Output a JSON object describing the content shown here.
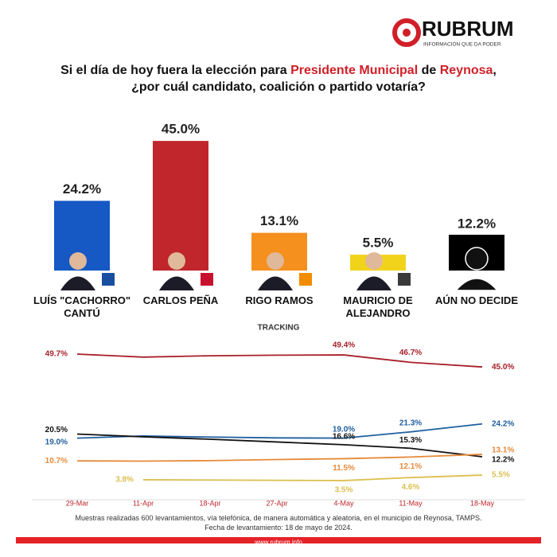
{
  "header": {
    "brand": "RUBRUM",
    "tagline": "INFORMACIÓN QUE DA PODER",
    "question": [
      "Si el día de hoy fuera la elección para ",
      "Presidente Municipal",
      " de ",
      "Reynosa",
      ", ¿por cuál candidato, coalición o partido votaría?"
    ]
  },
  "chart_data": [
    {
      "type": "bar",
      "categories": [
        "LUÍS \"CACHORRO\" CANTÚ",
        "CARLOS PEÑA",
        "RIGO RAMOS",
        "MAURICIO DE ALEJANDRO",
        "AÚN NO DECIDE"
      ],
      "values": [
        24.2,
        45.0,
        13.1,
        5.5,
        12.2
      ],
      "value_labels": [
        "24.2%",
        "45.0%",
        "13.1%",
        "5.5%",
        "12.2%"
      ],
      "colors": [
        "#1658c4",
        "#c0262c",
        "#f5901e",
        "#f2d31b",
        "#000000"
      ]
    },
    {
      "type": "line",
      "title": "TRACKING",
      "categories": [
        "29-Mar",
        "11-Apr",
        "18-Apr",
        "27-Apr",
        "4-May",
        "11-May",
        "18-May"
      ],
      "series": [
        {
          "color": "#a8202a",
          "values": [
            49.7,
            48.6,
            49.1,
            49.3,
            49.4,
            46.7,
            45.0
          ],
          "value_labels": [
            "49.7%",
            null,
            null,
            null,
            "49.4%",
            "46.7%",
            "45.0%"
          ]
        },
        {
          "color": "#1f5fa0",
          "values": [
            19.0,
            19.8,
            19.4,
            19.1,
            19.0,
            21.3,
            24.2
          ],
          "value_labels": [
            "19.0%",
            null,
            null,
            null,
            "19.0%",
            "21.3%",
            "24.2%"
          ]
        },
        {
          "color": "#111111",
          "values": [
            20.5,
            19.5,
            18.6,
            17.6,
            16.6,
            15.3,
            12.2
          ],
          "value_labels": [
            "20.5%",
            null,
            null,
            null,
            "16.6%",
            "15.3%",
            "12.2%"
          ]
        },
        {
          "color": "#e68a3a",
          "values": [
            10.7,
            10.6,
            10.8,
            11.2,
            11.5,
            12.1,
            13.1
          ],
          "value_labels": [
            "10.7%",
            null,
            null,
            null,
            "11.5%",
            "12.1%",
            "13.1%"
          ]
        },
        {
          "color": "#dcbf4e",
          "values": [
            null,
            3.8,
            3.7,
            3.6,
            3.5,
            4.6,
            5.5
          ],
          "value_labels": [
            null,
            "3.8%",
            null,
            null,
            "3.5%",
            "4.6%",
            "5.5%"
          ]
        }
      ]
    }
  ],
  "footer": {
    "note": "Muestras realizadas 600 levantamientos, vía telefónica, de manera automática y aleatoria, en el municipio de Reynosa, TAMPS.",
    "date": "Fecha de levantamiento: 18 de mayo de 2024.",
    "url": "www.rubrum.info"
  }
}
